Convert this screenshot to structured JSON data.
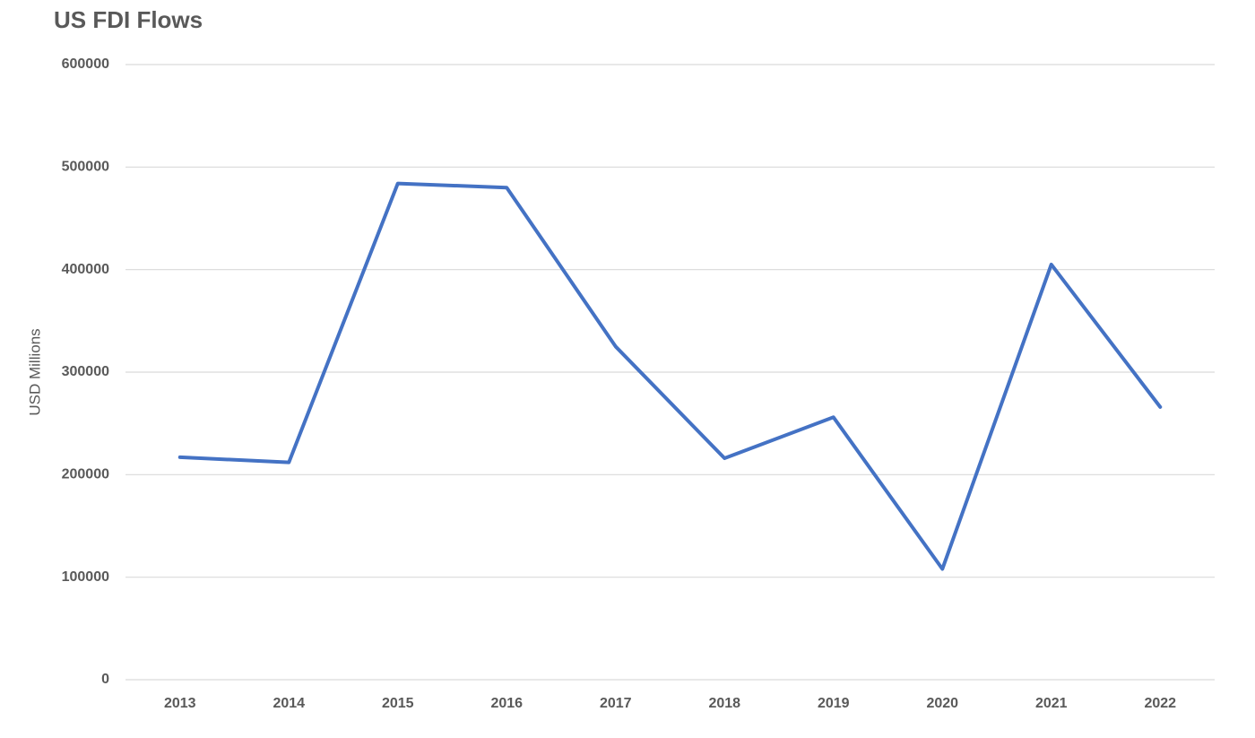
{
  "chart_data": {
    "type": "line",
    "title": "US FDI Flows",
    "y_label": "USD Millions",
    "categories": [
      "2013",
      "2014",
      "2015",
      "2016",
      "2017",
      "2018",
      "2019",
      "2020",
      "2021",
      "2022"
    ],
    "series": [
      {
        "name": "US FDI Flows",
        "color": "#4472c4",
        "values": [
          217000,
          212000,
          484000,
          480000,
          325000,
          216000,
          256000,
          108000,
          405000,
          266000
        ]
      }
    ],
    "ylim": [
      0,
      600000
    ],
    "yticks": [
      0,
      100000,
      200000,
      300000,
      400000,
      500000,
      600000
    ],
    "grid": true
  }
}
